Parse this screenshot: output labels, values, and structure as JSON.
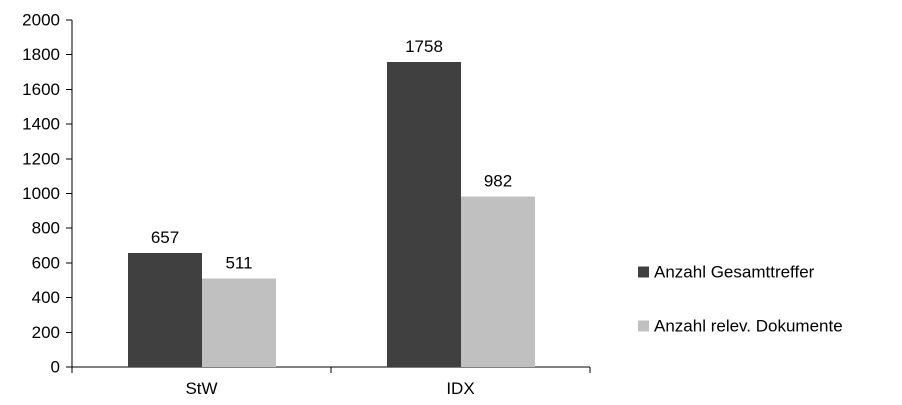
{
  "chart_data": {
    "type": "bar",
    "title": "",
    "xlabel": "",
    "ylabel": "",
    "categories": [
      "StW",
      "IDX"
    ],
    "series": [
      {
        "name": "Anzahl Gesamttreffer",
        "values": [
          657,
          1758
        ],
        "color": "#404040"
      },
      {
        "name": "Anzahl relev. Dokumente",
        "values": [
          511,
          982
        ],
        "color": "#c0c0c0"
      }
    ],
    "ylim": [
      0,
      2000
    ],
    "y_ticks": [
      0,
      200,
      400,
      600,
      800,
      1000,
      1200,
      1400,
      1600,
      1800,
      2000
    ],
    "y_tick_labels": [
      "0",
      "200",
      "400",
      "600",
      "800",
      "1000",
      "1200",
      "1400",
      "1600",
      "1800",
      "2000"
    ],
    "grid": false,
    "data_labels": true,
    "legend_position": "right"
  }
}
